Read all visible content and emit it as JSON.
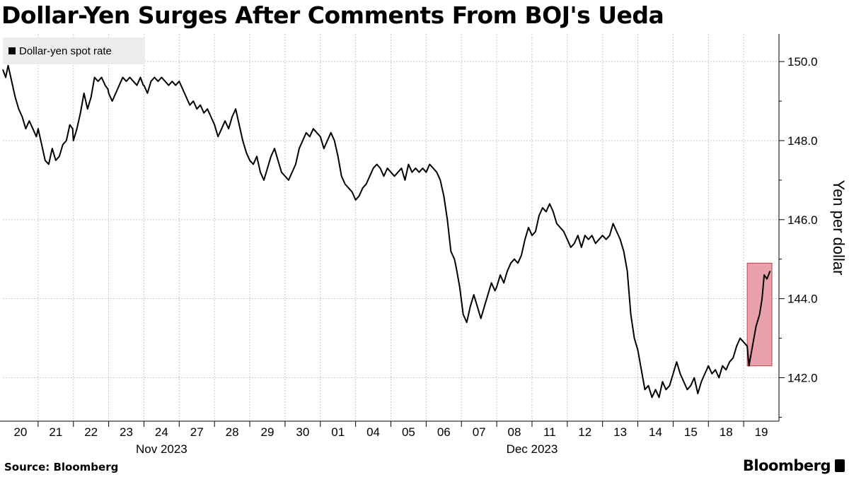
{
  "title": "Dollar-Yen Surges After Comments From BOJ's Ueda",
  "legend": "Dollar-yen spot rate",
  "source": "Source: Bloomberg",
  "brand": "Bloomberg",
  "colors": {
    "line": "#000000",
    "highlight_fill": "#e8a0aa",
    "highlight_stroke": "#c0404f",
    "grid": "#c8c8c8"
  },
  "chart_data": {
    "type": "line",
    "ylabel": "Yen per dollar",
    "ylim": [
      140.9,
      150.7
    ],
    "yticks": [
      142.0,
      144.0,
      146.0,
      148.0,
      150.0
    ],
    "ytick_labels": [
      "142.0",
      "144.0",
      "146.0",
      "148.0",
      "150.0"
    ],
    "x_categories": [
      "20",
      "21",
      "22",
      "23",
      "24",
      "27",
      "28",
      "29",
      "30",
      "01",
      "04",
      "05",
      "06",
      "07",
      "08",
      "11",
      "12",
      "13",
      "14",
      "15",
      "18",
      "19"
    ],
    "month_labels": [
      {
        "label": "Nov 2023",
        "at": 4.5
      },
      {
        "label": "Dec 2023",
        "at": 15
      }
    ],
    "x_range": [
      0,
      22
    ],
    "grid": true,
    "legend_position": "top-left",
    "series": [
      {
        "name": "Dollar-yen spot rate",
        "points": [
          [
            0.0,
            149.8
          ],
          [
            0.08,
            149.6
          ],
          [
            0.15,
            149.9
          ],
          [
            0.25,
            149.5
          ],
          [
            0.35,
            149.1
          ],
          [
            0.45,
            148.8
          ],
          [
            0.55,
            148.6
          ],
          [
            0.65,
            148.3
          ],
          [
            0.75,
            148.5
          ],
          [
            0.85,
            148.3
          ],
          [
            0.95,
            148.1
          ],
          [
            1.0,
            148.3
          ],
          [
            1.1,
            147.9
          ],
          [
            1.2,
            147.5
          ],
          [
            1.3,
            147.4
          ],
          [
            1.4,
            147.8
          ],
          [
            1.5,
            147.5
          ],
          [
            1.6,
            147.6
          ],
          [
            1.7,
            147.9
          ],
          [
            1.8,
            148.0
          ],
          [
            1.9,
            148.4
          ],
          [
            1.98,
            148.3
          ],
          [
            2.0,
            148.0
          ],
          [
            2.1,
            148.3
          ],
          [
            2.2,
            148.7
          ],
          [
            2.3,
            149.2
          ],
          [
            2.4,
            148.8
          ],
          [
            2.5,
            149.1
          ],
          [
            2.6,
            149.6
          ],
          [
            2.7,
            149.5
          ],
          [
            2.8,
            149.6
          ],
          [
            2.9,
            149.4
          ],
          [
            2.98,
            149.3
          ],
          [
            3.0,
            149.2
          ],
          [
            3.1,
            149.0
          ],
          [
            3.2,
            149.2
          ],
          [
            3.3,
            149.4
          ],
          [
            3.4,
            149.6
          ],
          [
            3.5,
            149.5
          ],
          [
            3.6,
            149.6
          ],
          [
            3.7,
            149.5
          ],
          [
            3.8,
            149.4
          ],
          [
            3.9,
            149.6
          ],
          [
            3.98,
            149.4
          ],
          [
            4.0,
            149.4
          ],
          [
            4.1,
            149.2
          ],
          [
            4.2,
            149.5
          ],
          [
            4.3,
            149.6
          ],
          [
            4.4,
            149.5
          ],
          [
            4.5,
            149.6
          ],
          [
            4.6,
            149.5
          ],
          [
            4.7,
            149.4
          ],
          [
            4.8,
            149.5
          ],
          [
            4.9,
            149.4
          ],
          [
            5.0,
            149.5
          ],
          [
            5.1,
            149.3
          ],
          [
            5.2,
            149.1
          ],
          [
            5.3,
            148.9
          ],
          [
            5.4,
            149.0
          ],
          [
            5.5,
            148.8
          ],
          [
            5.6,
            148.9
          ],
          [
            5.7,
            148.7
          ],
          [
            5.8,
            148.8
          ],
          [
            5.9,
            148.6
          ],
          [
            6.0,
            148.4
          ],
          [
            6.1,
            148.1
          ],
          [
            6.2,
            148.3
          ],
          [
            6.3,
            148.5
          ],
          [
            6.4,
            148.3
          ],
          [
            6.5,
            148.6
          ],
          [
            6.6,
            148.8
          ],
          [
            6.7,
            148.4
          ],
          [
            6.8,
            148.0
          ],
          [
            6.9,
            147.7
          ],
          [
            7.0,
            147.5
          ],
          [
            7.1,
            147.4
          ],
          [
            7.2,
            147.6
          ],
          [
            7.3,
            147.2
          ],
          [
            7.4,
            147.0
          ],
          [
            7.5,
            147.3
          ],
          [
            7.6,
            147.6
          ],
          [
            7.7,
            147.8
          ],
          [
            7.8,
            147.5
          ],
          [
            7.9,
            147.2
          ],
          [
            8.0,
            147.1
          ],
          [
            8.1,
            147.0
          ],
          [
            8.2,
            147.2
          ],
          [
            8.3,
            147.4
          ],
          [
            8.4,
            147.8
          ],
          [
            8.5,
            148.0
          ],
          [
            8.6,
            148.2
          ],
          [
            8.7,
            148.1
          ],
          [
            8.8,
            148.3
          ],
          [
            8.9,
            148.2
          ],
          [
            9.0,
            148.1
          ],
          [
            9.1,
            147.8
          ],
          [
            9.2,
            148.0
          ],
          [
            9.3,
            148.2
          ],
          [
            9.4,
            148.0
          ],
          [
            9.5,
            147.6
          ],
          [
            9.6,
            147.1
          ],
          [
            9.7,
            146.9
          ],
          [
            9.8,
            146.8
          ],
          [
            9.9,
            146.7
          ],
          [
            10.0,
            146.5
          ],
          [
            10.1,
            146.6
          ],
          [
            10.2,
            146.8
          ],
          [
            10.3,
            146.9
          ],
          [
            10.4,
            147.1
          ],
          [
            10.5,
            147.3
          ],
          [
            10.6,
            147.4
          ],
          [
            10.7,
            147.3
          ],
          [
            10.8,
            147.1
          ],
          [
            10.9,
            147.3
          ],
          [
            11.0,
            147.2
          ],
          [
            11.1,
            147.1
          ],
          [
            11.2,
            147.2
          ],
          [
            11.3,
            147.3
          ],
          [
            11.4,
            147.0
          ],
          [
            11.5,
            147.4
          ],
          [
            11.6,
            147.2
          ],
          [
            11.7,
            147.3
          ],
          [
            11.8,
            147.2
          ],
          [
            11.9,
            147.3
          ],
          [
            12.0,
            147.2
          ],
          [
            12.1,
            147.4
          ],
          [
            12.2,
            147.3
          ],
          [
            12.3,
            147.2
          ],
          [
            12.4,
            147.0
          ],
          [
            12.5,
            146.6
          ],
          [
            12.6,
            146.0
          ],
          [
            12.7,
            145.2
          ],
          [
            12.8,
            145.0
          ],
          [
            12.85,
            144.8
          ],
          [
            12.95,
            144.3
          ],
          [
            13.05,
            143.6
          ],
          [
            13.15,
            143.4
          ],
          [
            13.25,
            143.8
          ],
          [
            13.35,
            144.1
          ],
          [
            13.45,
            143.8
          ],
          [
            13.55,
            143.5
          ],
          [
            13.65,
            143.8
          ],
          [
            13.75,
            144.1
          ],
          [
            13.85,
            144.4
          ],
          [
            13.95,
            144.2
          ],
          [
            14.0,
            144.3
          ],
          [
            14.1,
            144.6
          ],
          [
            14.2,
            144.4
          ],
          [
            14.3,
            144.7
          ],
          [
            14.4,
            144.9
          ],
          [
            14.5,
            145.0
          ],
          [
            14.6,
            144.9
          ],
          [
            14.7,
            145.1
          ],
          [
            14.8,
            145.5
          ],
          [
            14.9,
            145.8
          ],
          [
            15.0,
            145.6
          ],
          [
            15.1,
            145.7
          ],
          [
            15.2,
            146.1
          ],
          [
            15.3,
            146.3
          ],
          [
            15.4,
            146.2
          ],
          [
            15.5,
            146.4
          ],
          [
            15.6,
            146.2
          ],
          [
            15.7,
            145.9
          ],
          [
            15.8,
            145.8
          ],
          [
            15.9,
            145.7
          ],
          [
            16.0,
            145.5
          ],
          [
            16.1,
            145.3
          ],
          [
            16.2,
            145.4
          ],
          [
            16.3,
            145.6
          ],
          [
            16.4,
            145.3
          ],
          [
            16.5,
            145.6
          ],
          [
            16.6,
            145.5
          ],
          [
            16.7,
            145.6
          ],
          [
            16.8,
            145.4
          ],
          [
            16.9,
            145.5
          ],
          [
            17.0,
            145.6
          ],
          [
            17.1,
            145.5
          ],
          [
            17.2,
            145.6
          ],
          [
            17.3,
            145.9
          ],
          [
            17.4,
            145.7
          ],
          [
            17.5,
            145.5
          ],
          [
            17.6,
            145.2
          ],
          [
            17.7,
            144.7
          ],
          [
            17.8,
            143.6
          ],
          [
            17.9,
            143.0
          ],
          [
            18.0,
            142.7
          ],
          [
            18.1,
            142.2
          ],
          [
            18.2,
            141.7
          ],
          [
            18.3,
            141.8
          ],
          [
            18.4,
            141.5
          ],
          [
            18.5,
            141.7
          ],
          [
            18.6,
            141.5
          ],
          [
            18.7,
            141.9
          ],
          [
            18.8,
            141.7
          ],
          [
            18.9,
            141.8
          ],
          [
            19.0,
            142.1
          ],
          [
            19.1,
            142.4
          ],
          [
            19.2,
            142.1
          ],
          [
            19.3,
            141.9
          ],
          [
            19.4,
            141.7
          ],
          [
            19.5,
            141.8
          ],
          [
            19.6,
            142.0
          ],
          [
            19.7,
            141.6
          ],
          [
            19.8,
            141.9
          ],
          [
            19.9,
            142.1
          ],
          [
            20.0,
            142.3
          ],
          [
            20.1,
            142.1
          ],
          [
            20.2,
            142.2
          ],
          [
            20.3,
            142.0
          ],
          [
            20.4,
            142.3
          ],
          [
            20.5,
            142.2
          ],
          [
            20.6,
            142.4
          ],
          [
            20.7,
            142.5
          ],
          [
            20.8,
            142.8
          ],
          [
            20.9,
            143.0
          ],
          [
            21.0,
            142.9
          ],
          [
            21.1,
            142.8
          ],
          [
            21.15,
            142.3
          ],
          [
            21.25,
            142.8
          ],
          [
            21.35,
            143.3
          ],
          [
            21.45,
            143.6
          ],
          [
            21.52,
            144.0
          ],
          [
            21.58,
            144.6
          ],
          [
            21.66,
            144.5
          ],
          [
            21.75,
            144.7
          ]
        ]
      }
    ],
    "highlight": {
      "x_from": 21.1,
      "x_to": 21.8,
      "y_from": 142.3,
      "y_to": 144.9
    }
  }
}
